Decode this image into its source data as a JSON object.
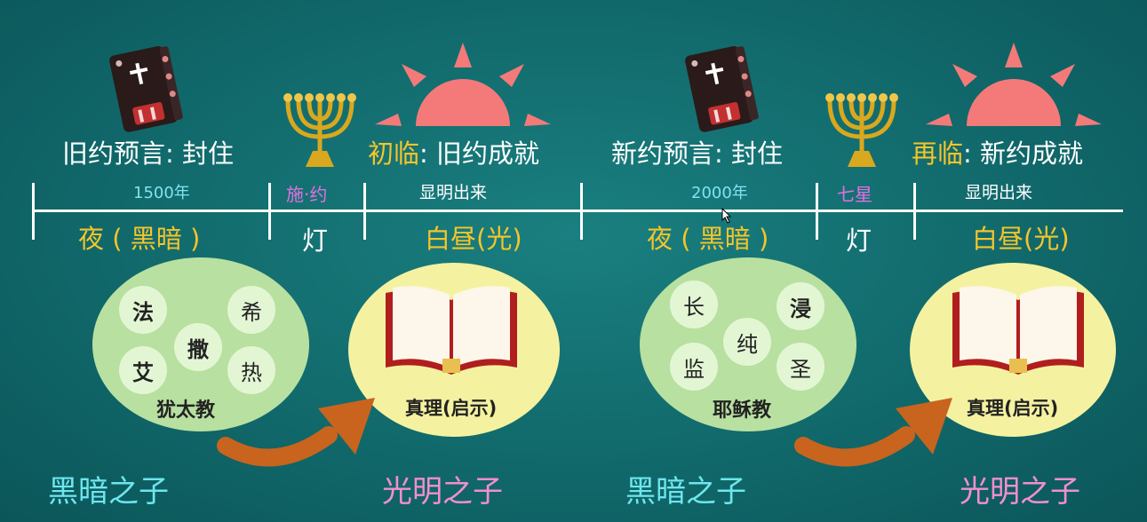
{
  "left": {
    "prophecy": "旧约预言: 封住",
    "years": "1500年",
    "lamp_label": "施·约",
    "coming_prefix": "初临",
    "coming_rest": ": 旧约成就",
    "reveal": "显明出来",
    "night": "夜 ( 黑暗 )",
    "lamp": "灯",
    "day": "白昼(光)",
    "circle_chars": [
      "法",
      "希",
      "撒",
      "艾",
      "热"
    ],
    "religion": "犹太教",
    "truth": "真理(启示)",
    "dark_children": "黑暗之子",
    "light_children": "光明之子"
  },
  "right": {
    "prophecy": "新约预言: 封住",
    "years": "2000年",
    "lamp_label": "七星",
    "coming_prefix": "再临",
    "coming_rest": ": 新约成就",
    "reveal": "显明出来",
    "night": "夜 ( 黑暗 )",
    "lamp": "灯",
    "day": "白昼(光)",
    "circle_chars": [
      "长",
      "浸",
      "纯",
      "监",
      "圣"
    ],
    "religion": "耶稣教",
    "truth": "真理(启示)",
    "dark_children": "黑暗之子",
    "light_children": "光明之子"
  },
  "colors": {
    "background": "#10676a",
    "gold_text": "#f5c52a",
    "cyan_text": "#6ee6ee",
    "pink_text": "#f28fcf",
    "magenta_text": "#e070e0",
    "sun": "#f47a7a",
    "green_circle": "#b8e0a0",
    "yellow_circle": "#f4f2a0",
    "arrow": "#c8641e"
  },
  "icons": [
    "bible-icon",
    "menorah-icon",
    "sun-icon",
    "open-book-icon",
    "curved-arrow-icon"
  ]
}
